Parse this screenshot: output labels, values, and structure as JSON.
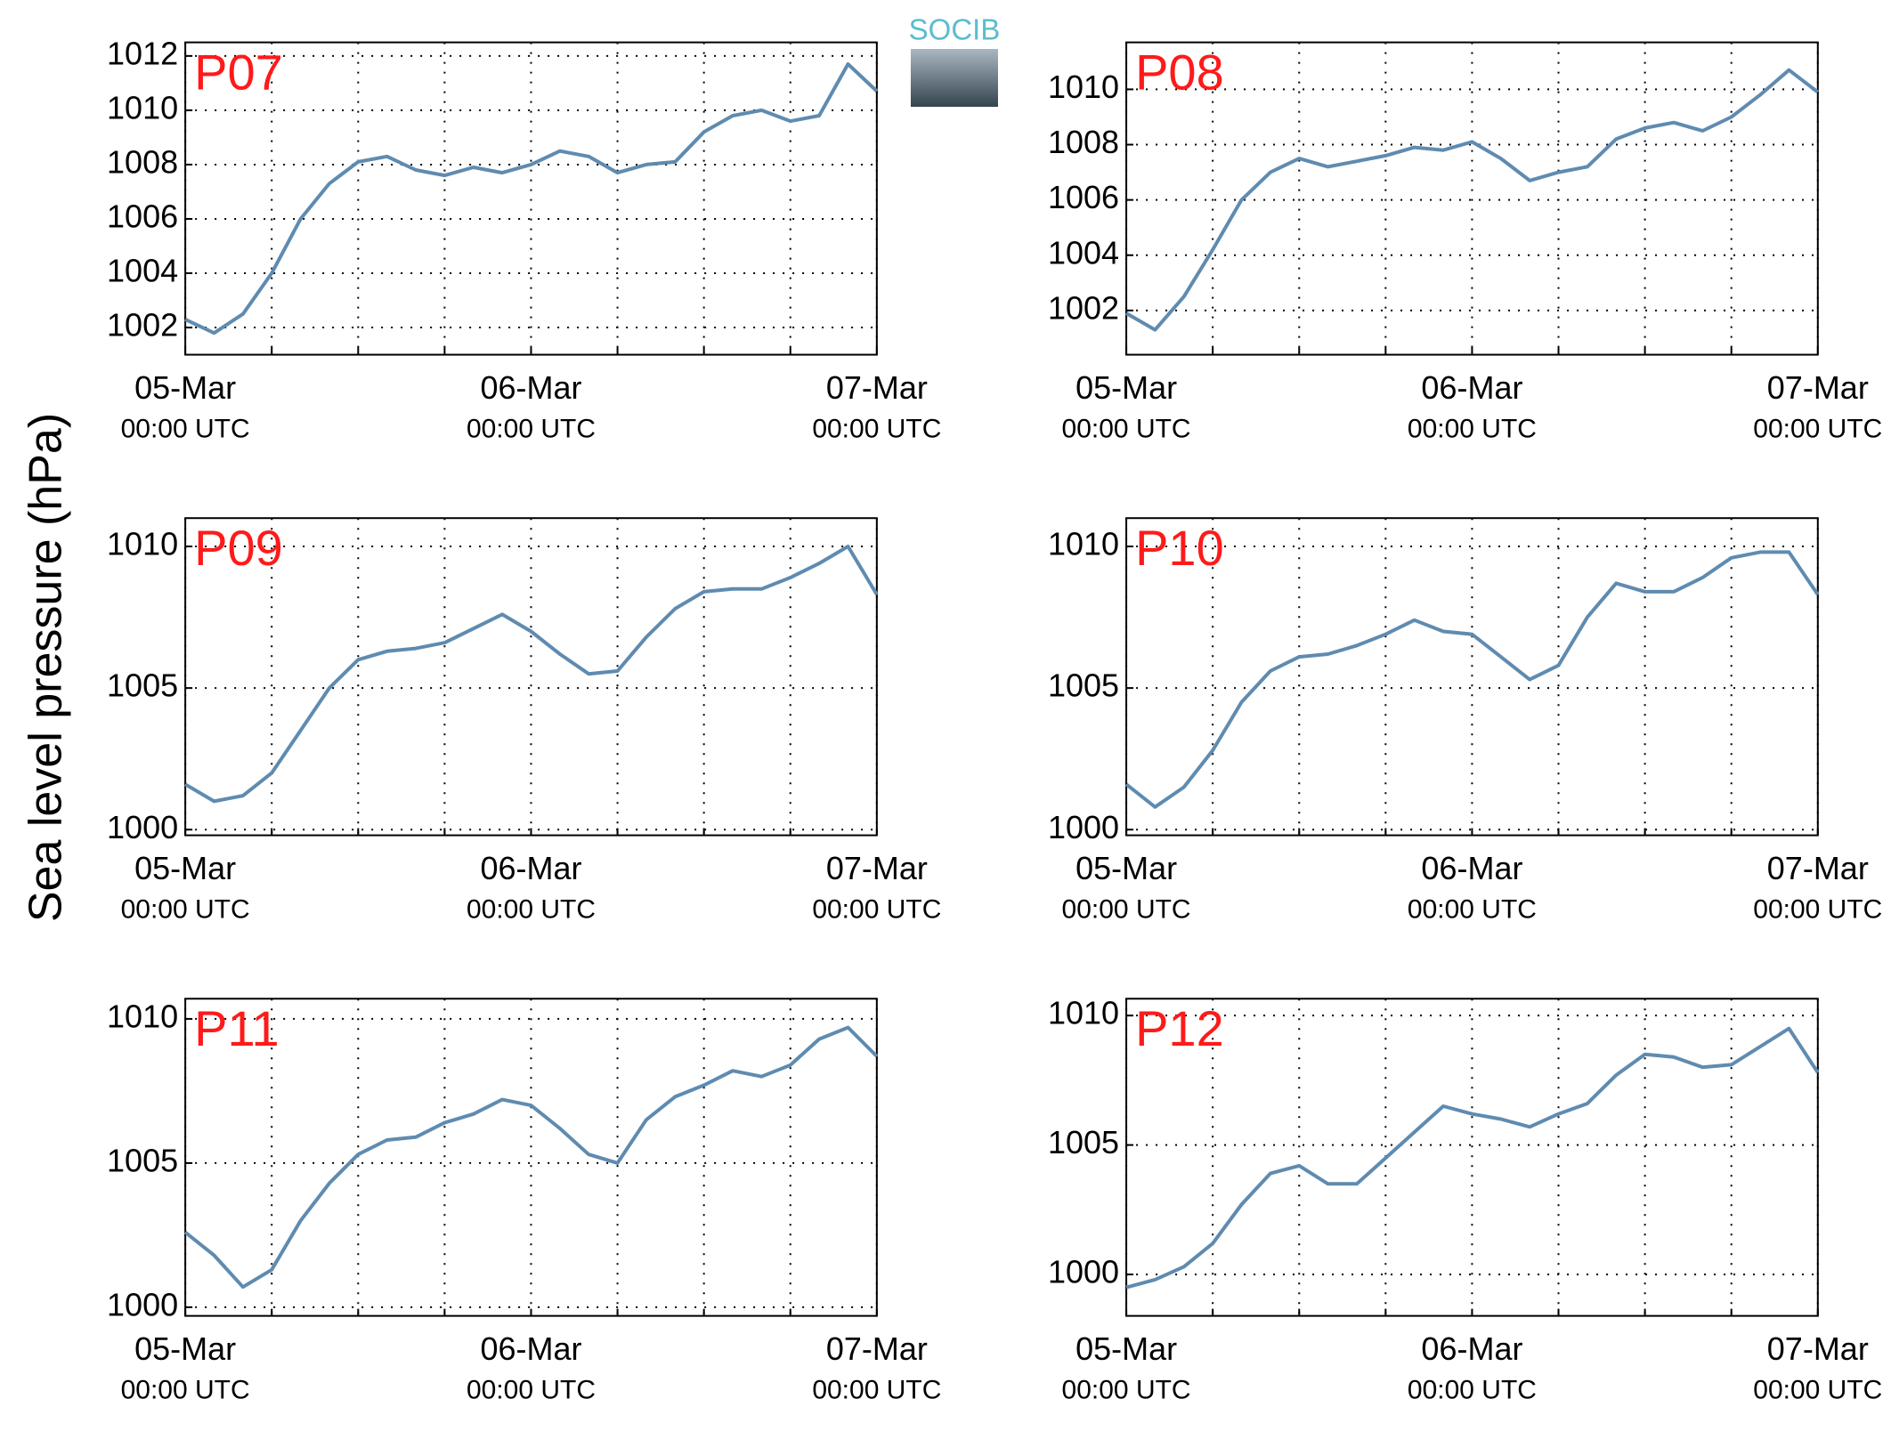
{
  "y_axis_label": "Sea level pressure (hPa)",
  "logo_text": "SOCIB",
  "chart_data": [
    {
      "type": "line",
      "title": "P07",
      "color": "#5f8bb0",
      "x": [
        0,
        2,
        4,
        6,
        8,
        10,
        12,
        14,
        16,
        18,
        20,
        22,
        24,
        26,
        28,
        30,
        32,
        34,
        36,
        38,
        40,
        42,
        44,
        46,
        48
      ],
      "values": [
        1002.3,
        1001.8,
        1002.5,
        1004,
        1006,
        1007.3,
        1008.1,
        1008.3,
        1007.8,
        1007.6,
        1007.9,
        1007.7,
        1008,
        1008.5,
        1008.3,
        1007.7,
        1008,
        1008.1,
        1009.2,
        1009.8,
        1010,
        1009.6,
        1009.8,
        1011.7,
        1010.7
      ],
      "xlim": [
        0,
        48
      ],
      "xticks": [
        {
          "value": 0,
          "label": "05-Mar",
          "sublabel": "00:00 UTC"
        },
        {
          "value": 6,
          "label": null
        },
        {
          "value": 12,
          "label": null
        },
        {
          "value": 18,
          "label": null
        },
        {
          "value": 24,
          "label": "06-Mar",
          "sublabel": "00:00 UTC"
        },
        {
          "value": 30,
          "label": null
        },
        {
          "value": 36,
          "label": null
        },
        {
          "value": 42,
          "label": null
        },
        {
          "value": 48,
          "label": "07-Mar",
          "sublabel": "00:00 UTC"
        }
      ],
      "ylim": [
        1001,
        1012.5
      ],
      "yticks": [
        1002,
        1004,
        1006,
        1008,
        1010,
        1012
      ],
      "grid": true
    },
    {
      "type": "line",
      "title": "P08",
      "color": "#5f8bb0",
      "x": [
        0,
        2,
        4,
        6,
        8,
        10,
        12,
        14,
        16,
        18,
        20,
        22,
        24,
        26,
        28,
        30,
        32,
        34,
        36,
        38,
        40,
        42,
        44,
        46,
        48
      ],
      "values": [
        1001.9,
        1001.3,
        1002.5,
        1004.2,
        1006,
        1007,
        1007.5,
        1007.2,
        1007.4,
        1007.6,
        1007.9,
        1007.8,
        1008.1,
        1007.5,
        1006.7,
        1007,
        1007.2,
        1008.2,
        1008.6,
        1008.8,
        1008.5,
        1009,
        1009.8,
        1010.7,
        1009.9
      ],
      "xlim": [
        0,
        48
      ],
      "xticks": [
        {
          "value": 0,
          "label": "05-Mar",
          "sublabel": "00:00 UTC"
        },
        {
          "value": 6,
          "label": null
        },
        {
          "value": 12,
          "label": null
        },
        {
          "value": 18,
          "label": null
        },
        {
          "value": 24,
          "label": "06-Mar",
          "sublabel": "00:00 UTC"
        },
        {
          "value": 30,
          "label": null
        },
        {
          "value": 36,
          "label": null
        },
        {
          "value": 42,
          "label": null
        },
        {
          "value": 48,
          "label": "07-Mar",
          "sublabel": "00:00 UTC"
        }
      ],
      "ylim": [
        1000.4,
        1011.7
      ],
      "yticks": [
        1002,
        1004,
        1006,
        1008,
        1010
      ],
      "grid": true
    },
    {
      "type": "line",
      "title": "P09",
      "color": "#5f8bb0",
      "x": [
        0,
        2,
        4,
        6,
        8,
        10,
        12,
        14,
        16,
        18,
        20,
        22,
        24,
        26,
        28,
        30,
        32,
        34,
        36,
        38,
        40,
        42,
        44,
        46,
        48
      ],
      "values": [
        1001.6,
        1001,
        1001.2,
        1002,
        1003.5,
        1005,
        1006,
        1006.3,
        1006.4,
        1006.6,
        1007.1,
        1007.6,
        1007,
        1006.2,
        1005.5,
        1005.6,
        1006.8,
        1007.8,
        1008.4,
        1008.5,
        1008.5,
        1008.9,
        1009.4,
        1010,
        1008.3
      ],
      "xlim": [
        0,
        48
      ],
      "xticks": [
        {
          "value": 0,
          "label": "05-Mar",
          "sublabel": "00:00 UTC"
        },
        {
          "value": 6,
          "label": null
        },
        {
          "value": 12,
          "label": null
        },
        {
          "value": 18,
          "label": null
        },
        {
          "value": 24,
          "label": "06-Mar",
          "sublabel": "00:00 UTC"
        },
        {
          "value": 30,
          "label": null
        },
        {
          "value": 36,
          "label": null
        },
        {
          "value": 42,
          "label": null
        },
        {
          "value": 48,
          "label": "07-Mar",
          "sublabel": "00:00 UTC"
        }
      ],
      "ylim": [
        999.8,
        1011
      ],
      "yticks": [
        1000,
        1005,
        1010
      ],
      "grid": true
    },
    {
      "type": "line",
      "title": "P10",
      "color": "#5f8bb0",
      "x": [
        0,
        2,
        4,
        6,
        8,
        10,
        12,
        14,
        16,
        18,
        20,
        22,
        24,
        26,
        28,
        30,
        32,
        34,
        36,
        38,
        40,
        42,
        44,
        46,
        48
      ],
      "values": [
        1001.6,
        1000.8,
        1001.5,
        1002.8,
        1004.5,
        1005.6,
        1006.1,
        1006.2,
        1006.5,
        1006.9,
        1007.4,
        1007,
        1006.9,
        1006.1,
        1005.3,
        1005.8,
        1007.5,
        1008.7,
        1008.4,
        1008.4,
        1008.9,
        1009.6,
        1009.8,
        1009.8,
        1008.3
      ],
      "xlim": [
        0,
        48
      ],
      "xticks": [
        {
          "value": 0,
          "label": "05-Mar",
          "sublabel": "00:00 UTC"
        },
        {
          "value": 6,
          "label": null
        },
        {
          "value": 12,
          "label": null
        },
        {
          "value": 18,
          "label": null
        },
        {
          "value": 24,
          "label": "06-Mar",
          "sublabel": "00:00 UTC"
        },
        {
          "value": 30,
          "label": null
        },
        {
          "value": 36,
          "label": null
        },
        {
          "value": 42,
          "label": null
        },
        {
          "value": 48,
          "label": "07-Mar",
          "sublabel": "00:00 UTC"
        }
      ],
      "ylim": [
        999.8,
        1011
      ],
      "yticks": [
        1000,
        1005,
        1010
      ],
      "grid": true
    },
    {
      "type": "line",
      "title": "P11",
      "color": "#5f8bb0",
      "x": [
        0,
        2,
        4,
        6,
        8,
        10,
        12,
        14,
        16,
        18,
        20,
        22,
        24,
        26,
        28,
        30,
        32,
        34,
        36,
        38,
        40,
        42,
        44,
        46,
        48
      ],
      "values": [
        1002.6,
        1001.8,
        1000.7,
        1001.3,
        1003,
        1004.3,
        1005.3,
        1005.8,
        1005.9,
        1006.4,
        1006.7,
        1007.2,
        1007,
        1006.2,
        1005.3,
        1005,
        1006.5,
        1007.3,
        1007.7,
        1008.2,
        1008,
        1008.4,
        1009.3,
        1009.7,
        1008.7
      ],
      "xlim": [
        0,
        48
      ],
      "xticks": [
        {
          "value": 0,
          "label": "05-Mar",
          "sublabel": "00:00 UTC"
        },
        {
          "value": 6,
          "label": null
        },
        {
          "value": 12,
          "label": null
        },
        {
          "value": 18,
          "label": null
        },
        {
          "value": 24,
          "label": "06-Mar",
          "sublabel": "00:00 UTC"
        },
        {
          "value": 30,
          "label": null
        },
        {
          "value": 36,
          "label": null
        },
        {
          "value": 42,
          "label": null
        },
        {
          "value": 48,
          "label": "07-Mar",
          "sublabel": "00:00 UTC"
        }
      ],
      "ylim": [
        999.7,
        1010.7
      ],
      "yticks": [
        1000,
        1005,
        1010
      ],
      "grid": true
    },
    {
      "type": "line",
      "title": "P12",
      "color": "#5f8bb0",
      "x": [
        0,
        2,
        4,
        6,
        8,
        10,
        12,
        14,
        16,
        18,
        20,
        22,
        24,
        26,
        28,
        30,
        32,
        34,
        36,
        38,
        40,
        42,
        44,
        46,
        48
      ],
      "values": [
        999.5,
        999.8,
        1000.3,
        1001.2,
        1002.7,
        1003.9,
        1004.2,
        1003.5,
        1003.5,
        1004.5,
        1005.5,
        1006.5,
        1006.2,
        1006,
        1005.7,
        1006.2,
        1006.6,
        1007.7,
        1008.5,
        1008.4,
        1008,
        1008.1,
        1008.8,
        1009.5,
        1007.8
      ],
      "xlim": [
        0,
        48
      ],
      "xticks": [
        {
          "value": 0,
          "label": "05-Mar",
          "sublabel": "00:00 UTC"
        },
        {
          "value": 6,
          "label": null
        },
        {
          "value": 12,
          "label": null
        },
        {
          "value": 18,
          "label": null
        },
        {
          "value": 24,
          "label": "06-Mar",
          "sublabel": "00:00 UTC"
        },
        {
          "value": 30,
          "label": null
        },
        {
          "value": 36,
          "label": null
        },
        {
          "value": 42,
          "label": null
        },
        {
          "value": 48,
          "label": "07-Mar",
          "sublabel": "00:00 UTC"
        }
      ],
      "ylim": [
        998.4,
        1010.65
      ],
      "yticks": [
        1000,
        1005,
        1010
      ],
      "grid": true
    }
  ]
}
